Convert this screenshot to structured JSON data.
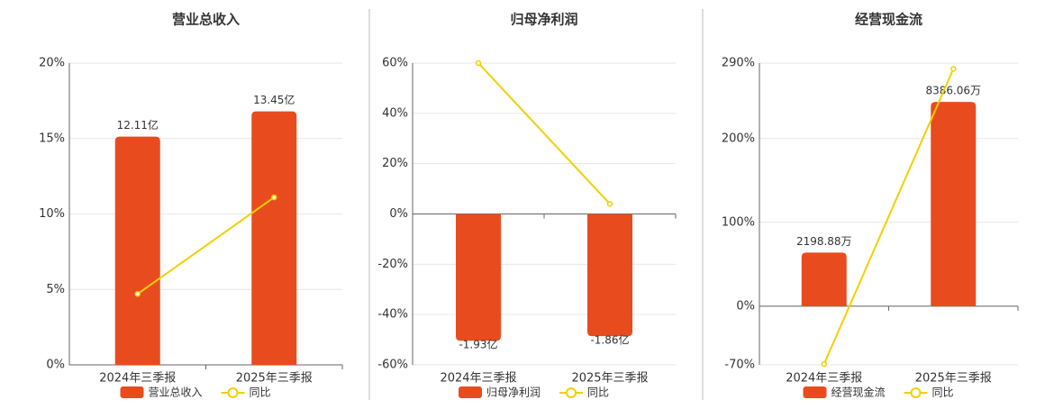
{
  "chart_data": [
    {
      "type": "bar",
      "title": "营业总收入",
      "categories": [
        "2024年三季报",
        "2025年三季报"
      ],
      "series": [
        {
          "name": "营业总收入",
          "type": "bar",
          "color": "#e84c1e",
          "values": [
            12.11,
            13.45
          ],
          "value_labels": [
            "12.11亿",
            "13.45亿"
          ]
        },
        {
          "name": "同比",
          "type": "line",
          "color": "#f0d000",
          "values": [
            4.7,
            11.1
          ]
        }
      ],
      "ylim": [
        0,
        20
      ],
      "yticks": [
        {
          "value": 0,
          "label": "0%"
        },
        {
          "value": 5,
          "label": "5%"
        },
        {
          "value": 10,
          "label": "10%"
        },
        {
          "value": 15,
          "label": "15%"
        },
        {
          "value": 20,
          "label": "20%"
        }
      ],
      "grid": true
    },
    {
      "type": "bar",
      "title": "归母净利润",
      "categories": [
        "2024年三季报",
        "2025年三季报"
      ],
      "series": [
        {
          "name": "归母净利润",
          "type": "bar",
          "color": "#e84c1e",
          "values": [
            -1.93,
            -1.86
          ],
          "value_labels": [
            "-1.93亿",
            "-1.86亿"
          ]
        },
        {
          "name": "同比",
          "type": "line",
          "color": "#f0d000",
          "values": [
            60,
            4
          ]
        }
      ],
      "ylim": [
        -60,
        60
      ],
      "yticks": [
        {
          "value": -60,
          "label": "-60%"
        },
        {
          "value": -40,
          "label": "-40%"
        },
        {
          "value": -20,
          "label": "-20%"
        },
        {
          "value": 0,
          "label": "0%"
        },
        {
          "value": 20,
          "label": "20%"
        },
        {
          "value": 40,
          "label": "40%"
        },
        {
          "value": 60,
          "label": "60%"
        }
      ],
      "grid": true
    },
    {
      "type": "bar",
      "title": "经营现金流",
      "categories": [
        "2024年三季报",
        "2025年三季报"
      ],
      "series": [
        {
          "name": "经营现金流",
          "type": "bar",
          "color": "#e84c1e",
          "values": [
            2198.88,
            8386.06
          ],
          "value_labels": [
            "2198.88万",
            "8386.06万"
          ]
        },
        {
          "name": "同比",
          "type": "line",
          "color": "#f0d000",
          "values": [
            -69,
            283
          ]
        }
      ],
      "ylim": [
        -70,
        290
      ],
      "yticks": [
        {
          "value": -70,
          "label": "-70%"
        },
        {
          "value": 0,
          "label": "0%"
        },
        {
          "value": 100,
          "label": "100%"
        },
        {
          "value": 200,
          "label": "200%"
        },
        {
          "value": 290,
          "label": "290%"
        }
      ],
      "grid": true
    }
  ]
}
